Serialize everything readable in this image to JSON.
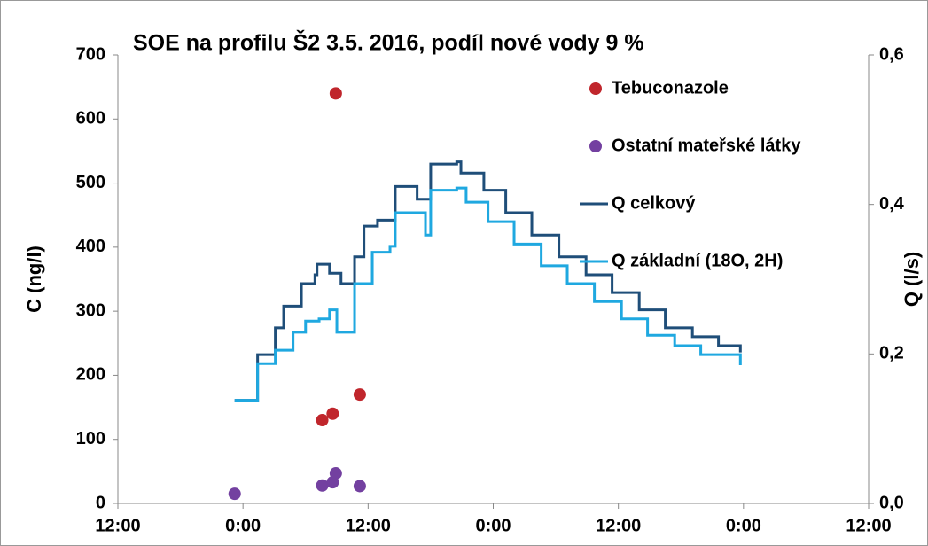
{
  "chart_data": {
    "type": "combo",
    "title": "SOE na profilu  Š2 3.5. 2016, podíl nové vody 9 %",
    "ylabel": "C (ng/l)",
    "y2label": "Q (l/s)",
    "xlim": [
      0,
      72
    ],
    "xticks": [
      {
        "value": 0,
        "label": "12:00"
      },
      {
        "value": 12,
        "label": "0:00"
      },
      {
        "value": 24,
        "label": "12:00"
      },
      {
        "value": 36,
        "label": "0:00"
      },
      {
        "value": 48,
        "label": "12:00"
      },
      {
        "value": 60,
        "label": "0:00"
      },
      {
        "value": 72,
        "label": "12:00"
      }
    ],
    "ylim": [
      0,
      700
    ],
    "yticks": [
      0,
      100,
      200,
      300,
      400,
      500,
      600,
      700
    ],
    "y2lim": [
      0,
      0.6
    ],
    "y2ticks": [
      {
        "value": 0,
        "label": "0,0"
      },
      {
        "value": 0.2,
        "label": "0,2"
      },
      {
        "value": 0.4,
        "label": "0,4"
      },
      {
        "value": 0.6,
        "label": "0,6"
      }
    ],
    "legend": "right",
    "series": [
      {
        "name": "Tebuconazole",
        "type": "scatter",
        "color": "#c0262c",
        "x": [
          19.6,
          20.6,
          23.2,
          20.9
        ],
        "values": [
          130,
          140,
          170,
          640
        ]
      },
      {
        "name": "Ostatní mateřské látky",
        "type": "scatter",
        "color": "#7340a0",
        "x": [
          11.2,
          19.6,
          20.6,
          20.9,
          23.2
        ],
        "values": [
          15,
          28,
          33,
          47,
          27
        ]
      },
      {
        "name": "Q celkový",
        "type": "line",
        "axis": "y2",
        "color": "#1f4e79",
        "x": [
          11.2,
          13.4,
          15.1,
          15.9,
          17.6,
          18.9,
          19.1,
          20.3,
          21.0,
          21.4,
          22.7,
          23.6,
          24.9,
          26.1,
          26.6,
          27.8,
          28.7,
          29.5,
          30.0,
          32.5,
          32.9,
          35.1,
          37.2,
          39.7,
          42.3,
          44.9,
          47.4,
          50.0,
          52.5,
          55.1,
          57.6,
          59.7
        ],
        "values": [
          0.138,
          0.199,
          0.235,
          0.264,
          0.294,
          0.306,
          0.32,
          0.308,
          0.308,
          0.294,
          0.33,
          0.371,
          0.379,
          0.379,
          0.424,
          0.424,
          0.407,
          0.407,
          0.454,
          0.457,
          0.442,
          0.419,
          0.389,
          0.359,
          0.33,
          0.306,
          0.282,
          0.259,
          0.235,
          0.223,
          0.211,
          0.202
        ]
      },
      {
        "name": "Q základní (18O, 2H)",
        "type": "line",
        "axis": "y2",
        "color": "#1fa8e0",
        "x": [
          11.2,
          13.4,
          15.1,
          16.8,
          18.0,
          19.3,
          20.3,
          21.0,
          22.7,
          24.4,
          26.1,
          26.6,
          28.7,
          29.5,
          30.0,
          32.5,
          33.4,
          35.5,
          38.0,
          40.6,
          43.1,
          45.7,
          48.3,
          50.8,
          53.4,
          55.9,
          59.7
        ],
        "values": [
          0.138,
          0.187,
          0.205,
          0.229,
          0.244,
          0.247,
          0.259,
          0.229,
          0.294,
          0.336,
          0.344,
          0.389,
          0.389,
          0.359,
          0.419,
          0.422,
          0.403,
          0.377,
          0.347,
          0.318,
          0.294,
          0.27,
          0.247,
          0.225,
          0.211,
          0.199,
          0.185
        ]
      }
    ]
  }
}
